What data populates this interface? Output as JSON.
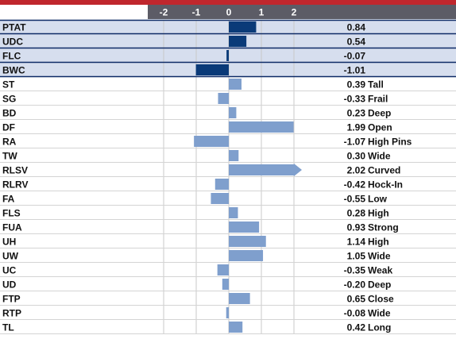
{
  "chart_data": {
    "type": "bar",
    "orientation": "horizontal",
    "xlim": [
      -2,
      2
    ],
    "tick_labels": [
      "-2",
      "-1",
      "0",
      "1",
      "2"
    ],
    "tick_values": [
      -2,
      -1,
      0,
      1,
      2
    ],
    "grid": true,
    "rows": [
      {
        "label": "PTAT",
        "value": 0.84,
        "value_text": "0.84",
        "descriptor": "",
        "group": "composite"
      },
      {
        "label": "UDC",
        "value": 0.54,
        "value_text": "0.54",
        "descriptor": "",
        "group": "composite"
      },
      {
        "label": "FLC",
        "value": -0.07,
        "value_text": "-0.07",
        "descriptor": "",
        "group": "composite"
      },
      {
        "label": "BWC",
        "value": -1.01,
        "value_text": "-1.01",
        "descriptor": "",
        "group": "composite"
      },
      {
        "label": "ST",
        "value": 0.39,
        "value_text": "0.39",
        "descriptor": "Tall",
        "group": "trait"
      },
      {
        "label": "SG",
        "value": -0.33,
        "value_text": "-0.33",
        "descriptor": "Frail",
        "group": "trait"
      },
      {
        "label": "BD",
        "value": 0.23,
        "value_text": "0.23",
        "descriptor": "Deep",
        "group": "trait"
      },
      {
        "label": "DF",
        "value": 1.99,
        "value_text": "1.99",
        "descriptor": "Open",
        "group": "trait"
      },
      {
        "label": "RA",
        "value": -1.07,
        "value_text": "-1.07",
        "descriptor": "High Pins",
        "group": "trait"
      },
      {
        "label": "TW",
        "value": 0.3,
        "value_text": "0.30",
        "descriptor": "Wide",
        "group": "trait"
      },
      {
        "label": "RLSV",
        "value": 2.02,
        "value_text": "2.02",
        "descriptor": "Curved",
        "group": "trait"
      },
      {
        "label": "RLRV",
        "value": -0.42,
        "value_text": "-0.42",
        "descriptor": "Hock-In",
        "group": "trait"
      },
      {
        "label": "FA",
        "value": -0.55,
        "value_text": "-0.55",
        "descriptor": "Low",
        "group": "trait"
      },
      {
        "label": "FLS",
        "value": 0.28,
        "value_text": "0.28",
        "descriptor": "High",
        "group": "trait"
      },
      {
        "label": "FUA",
        "value": 0.93,
        "value_text": "0.93",
        "descriptor": "Strong",
        "group": "trait"
      },
      {
        "label": "UH",
        "value": 1.14,
        "value_text": "1.14",
        "descriptor": "High",
        "group": "trait"
      },
      {
        "label": "UW",
        "value": 1.05,
        "value_text": "1.05",
        "descriptor": "Wide",
        "group": "trait"
      },
      {
        "label": "UC",
        "value": -0.35,
        "value_text": "-0.35",
        "descriptor": "Weak",
        "group": "trait"
      },
      {
        "label": "UD",
        "value": -0.2,
        "value_text": "-0.20",
        "descriptor": "Deep",
        "group": "trait"
      },
      {
        "label": "FTP",
        "value": 0.65,
        "value_text": "0.65",
        "descriptor": "Close",
        "group": "trait"
      },
      {
        "label": "RTP",
        "value": -0.08,
        "value_text": "-0.08",
        "descriptor": "Wide",
        "group": "trait"
      },
      {
        "label": "TL",
        "value": 0.42,
        "value_text": "0.42",
        "descriptor": "Long",
        "group": "trait"
      }
    ],
    "colors": {
      "composite_bar": "#0a3a78",
      "trait_bar": "#7f9fcd",
      "composite_row_bg": "#d6deee",
      "composite_row_border": "#0d2a66",
      "header_stripe": "#c0272d",
      "axis_band": "#5c5c66"
    }
  }
}
